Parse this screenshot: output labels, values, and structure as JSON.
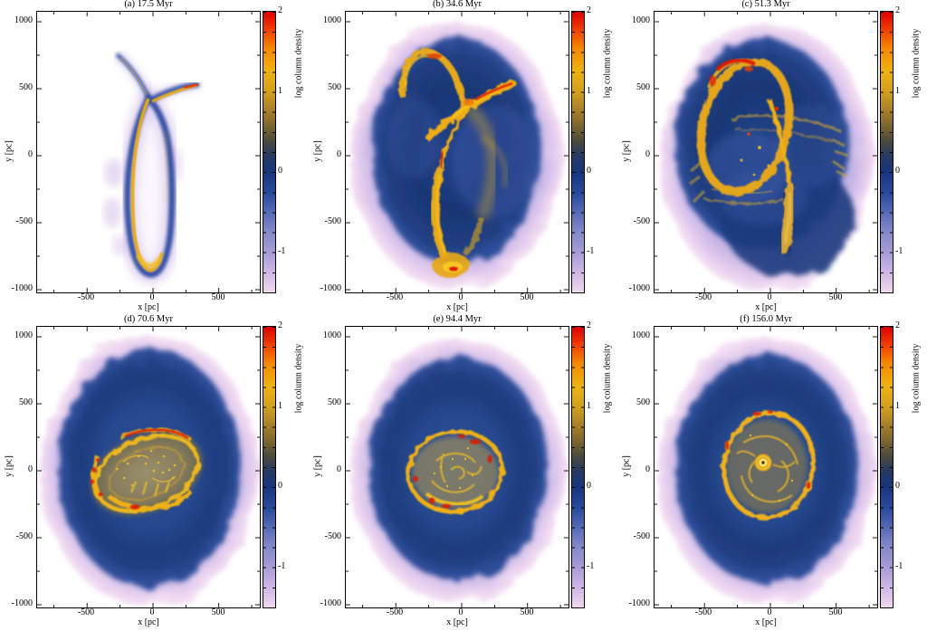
{
  "figure": {
    "description": "Six-panel time sequence of simulated gas column density maps",
    "panels": [
      {
        "id": "a",
        "title": "(a) 17.5 Myr",
        "time_myr": 17.5
      },
      {
        "id": "b",
        "title": "(b) 34.6 Myr",
        "time_myr": 34.6
      },
      {
        "id": "c",
        "title": "(c) 51.3 Myr",
        "time_myr": 51.3
      },
      {
        "id": "d",
        "title": "(d) 70.6 Myr",
        "time_myr": 70.6
      },
      {
        "id": "e",
        "title": "(e) 94.4 Myr",
        "time_myr": 94.4
      },
      {
        "id": "f",
        "title": "(f) 156.0 Myr",
        "time_myr": 156.0
      }
    ],
    "axes": {
      "xlabel": "x [pc]",
      "ylabel": "y [pc]",
      "x_ticks": [
        "-500",
        "0",
        "500"
      ],
      "y_ticks": [
        "1000",
        "500",
        "0",
        "-500",
        "-1000"
      ]
    },
    "colorbar": {
      "label": "log column density",
      "ticks": [
        "2",
        "1",
        "0",
        "-1"
      ],
      "range": [
        -1.5,
        2
      ],
      "scale_colors": {
        "2.0": "#dd0000",
        "1.5": "#f58800",
        "1.0": "#d2a01e",
        "0.5": "#6a5c32",
        "0.3": "#283a60",
        "0.0": "#17357c",
        "-0.5": "#5a6cb6",
        "-1.0": "#a89cd7",
        "-1.5": "#f0d8ee"
      }
    }
  },
  "chart_data": [
    {
      "type": "heatmap",
      "panel": "a",
      "title": "(a) 17.5 Myr",
      "time_myr": 17.5,
      "xlabel": "x [pc]",
      "ylabel": "y [pc]",
      "xlim": [
        -880,
        830
      ],
      "ylim": [
        -1050,
        1080
      ],
      "x_ticks": [
        -500,
        0,
        500
      ],
      "y_ticks": [
        1000,
        500,
        0,
        -500,
        -1000
      ],
      "color_scale": {
        "label": "log column density",
        "ticks": [
          2,
          1,
          0,
          -1
        ],
        "range": [
          -1.5,
          2
        ]
      },
      "features": "Narrow tidal gas stream on white background: thin vertical loop from y~550 to y~-900 pc with bright gold filament and blue sheath, diagonal arm to (350,530) pc ending in a red high-density tip, faint blue plume toward (-270,750) pc."
    },
    {
      "type": "heatmap",
      "panel": "b",
      "title": "(b) 34.6 Myr",
      "time_myr": 34.6,
      "xlabel": "x [pc]",
      "ylabel": "y [pc]",
      "xlim": [
        -880,
        830
      ],
      "ylim": [
        -1050,
        1080
      ],
      "x_ticks": [
        -500,
        0,
        500
      ],
      "y_ticks": [
        1000,
        500,
        0,
        -500,
        -1000
      ],
      "color_scale": {
        "label": "log column density",
        "ticks": [
          2,
          1,
          0,
          -1
        ],
        "range": [
          -1.5,
          2
        ]
      },
      "features": "Extended diffuse lavender halo with dark navy envelope; bright gold loop at upper left, luminous arc arm with red tip near (400,500) pc, filament descending along the left to a bright knot with red core near (-80,-850) pc, fainter gold band on the right."
    },
    {
      "type": "heatmap",
      "panel": "c",
      "title": "(c) 51.3 Myr",
      "time_myr": 51.3,
      "xlabel": "x [pc]",
      "ylabel": "y [pc]",
      "xlim": [
        -880,
        830
      ],
      "ylim": [
        -1050,
        1080
      ],
      "x_ticks": [
        -500,
        0,
        500
      ],
      "y_ticks": [
        1000,
        500,
        0,
        -500,
        -1000
      ],
      "color_scale": {
        "label": "log column density",
        "ticks": [
          2,
          1,
          0,
          -1
        ],
        "range": [
          -1.5,
          2
        ]
      },
      "features": "Diffuse halo with navy envelope; gold elliptical ring in upper left with red crests at its top (y~700 pc), streaky horizontal filaments across the centre with ragged edges, thick gold tail descending to (150,-750) pc."
    },
    {
      "type": "heatmap",
      "panel": "d",
      "title": "(d) 70.6 Myr",
      "time_myr": 70.6,
      "xlabel": "x [pc]",
      "ylabel": "y [pc]",
      "xlim": [
        -880,
        830
      ],
      "ylim": [
        -1050,
        1080
      ],
      "x_ticks": [
        -500,
        0,
        500
      ],
      "y_ticks": [
        1000,
        500,
        0,
        -500,
        -1000
      ],
      "color_scale": {
        "label": "log column density",
        "ticks": [
          2,
          1,
          0,
          -1
        ],
        "range": [
          -1.5,
          2
        ]
      },
      "features": "Roughly circular halo with dense navy ring; tilted chaotic disc ~850x550 pc of gold filaments and clumps, red high-density ridges along the upper and left edges."
    },
    {
      "type": "heatmap",
      "panel": "e",
      "title": "(e) 94.4 Myr",
      "time_myr": 94.4,
      "xlabel": "x [pc]",
      "ylabel": "y [pc]",
      "xlim": [
        -880,
        830
      ],
      "ylim": [
        -1050,
        1080
      ],
      "x_ticks": [
        -500,
        0,
        500
      ],
      "y_ticks": [
        1000,
        500,
        0,
        -500,
        -1000
      ],
      "color_scale": {
        "label": "log column density",
        "ticks": [
          2,
          1,
          0,
          -1
        ],
        "range": [
          -1.5,
          2
        ]
      },
      "features": "Circular halo; rounder filamentary gold ring ~700 pc across with internal spiral wisps and clumps, red knots on the upper-right and lower-left edges."
    },
    {
      "type": "heatmap",
      "panel": "f",
      "title": "(f) 156.0 Myr",
      "time_myr": 156.0,
      "xlabel": "x [pc]",
      "ylabel": "y [pc]",
      "xlim": [
        -880,
        830
      ],
      "ylim": [
        -1050,
        1080
      ],
      "x_ticks": [
        -500,
        0,
        500
      ],
      "y_ticks": [
        1000,
        500,
        0,
        -500,
        -1000
      ],
      "color_scale": {
        "label": "log column density",
        "ticks": [
          2,
          1,
          0,
          -1
        ],
        "range": [
          -1.5,
          2
        ]
      },
      "features": "Relaxed circular halo; clean gold ring ~650 pc across with internal spiral filaments and a compact bright nuclear knot at the centre."
    }
  ]
}
